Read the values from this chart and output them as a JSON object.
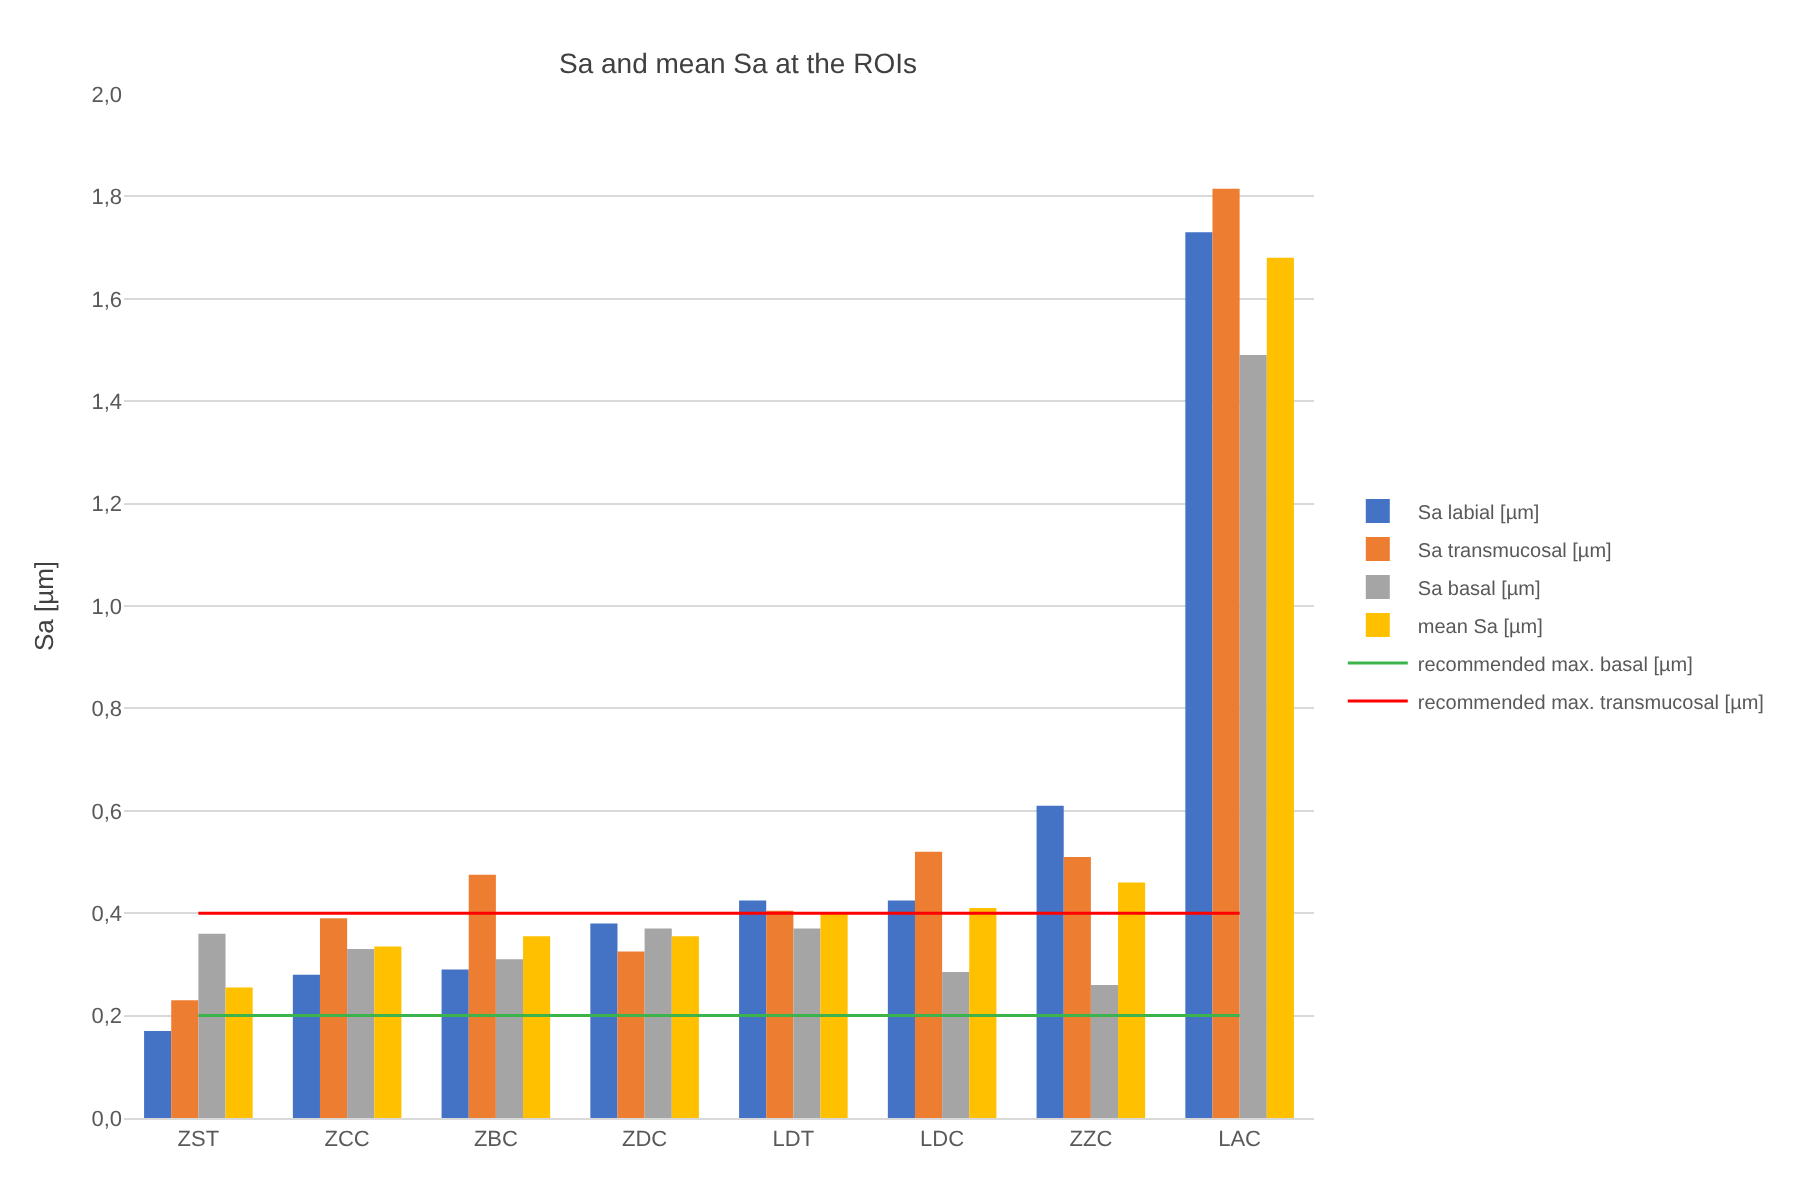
{
  "chart_data": {
    "type": "bar",
    "title": "Sa and mean Sa at the ROIs",
    "ylabel": "Sa [µm]",
    "categories": [
      "ZST",
      "ZCC",
      "ZBC",
      "ZDC",
      "LDT",
      "LDC",
      "ZZC",
      "LAC"
    ],
    "series": [
      {
        "name": "Sa labial [µm]",
        "color": "#4472c4",
        "values": [
          0.17,
          0.28,
          0.29,
          0.38,
          0.425,
          0.425,
          0.61,
          1.73
        ]
      },
      {
        "name": "Sa transmucosal [µm]",
        "color": "#ed7d31",
        "values": [
          0.23,
          0.39,
          0.475,
          0.325,
          0.405,
          0.52,
          0.51,
          1.815
        ]
      },
      {
        "name": "Sa basal [µm]",
        "color": "#a5a5a5",
        "values": [
          0.36,
          0.33,
          0.31,
          0.37,
          0.37,
          0.285,
          0.26,
          1.49
        ]
      },
      {
        "name": "mean Sa [µm]",
        "color": "#ffc000",
        "values": [
          0.255,
          0.335,
          0.355,
          0.355,
          0.4,
          0.41,
          0.46,
          1.68
        ]
      },
      {
        "name": "recommended max. basal [µm]",
        "type": "line",
        "color": "#3cb44b",
        "values": [
          0.2,
          0.2,
          0.2,
          0.2,
          0.2,
          0.2,
          0.2,
          0.2
        ]
      },
      {
        "name": "recommended max. transmucosal [µm]",
        "type": "line",
        "color": "#ff0000",
        "values": [
          0.4,
          0.4,
          0.4,
          0.4,
          0.4,
          0.4,
          0.4,
          0.4
        ]
      }
    ],
    "ylim": [
      0,
      2
    ],
    "yticks": [
      {
        "value": 0,
        "label": "0,0"
      },
      {
        "value": 0.2,
        "label": "0,2"
      },
      {
        "value": 0.4,
        "label": "0,4"
      },
      {
        "value": 0.6,
        "label": "0,6"
      },
      {
        "value": 0.8,
        "label": "0,8"
      },
      {
        "value": 1.0,
        "label": "1,0"
      },
      {
        "value": 1.2,
        "label": "1,2"
      },
      {
        "value": 1.4,
        "label": "1,4"
      },
      {
        "value": 1.6,
        "label": "1,6"
      },
      {
        "value": 1.8,
        "label": "1,8"
      },
      {
        "value": 2.0,
        "label": "2,0"
      }
    ],
    "grid": "y",
    "legend": "right",
    "marker": "none",
    "line_style": "solid"
  }
}
